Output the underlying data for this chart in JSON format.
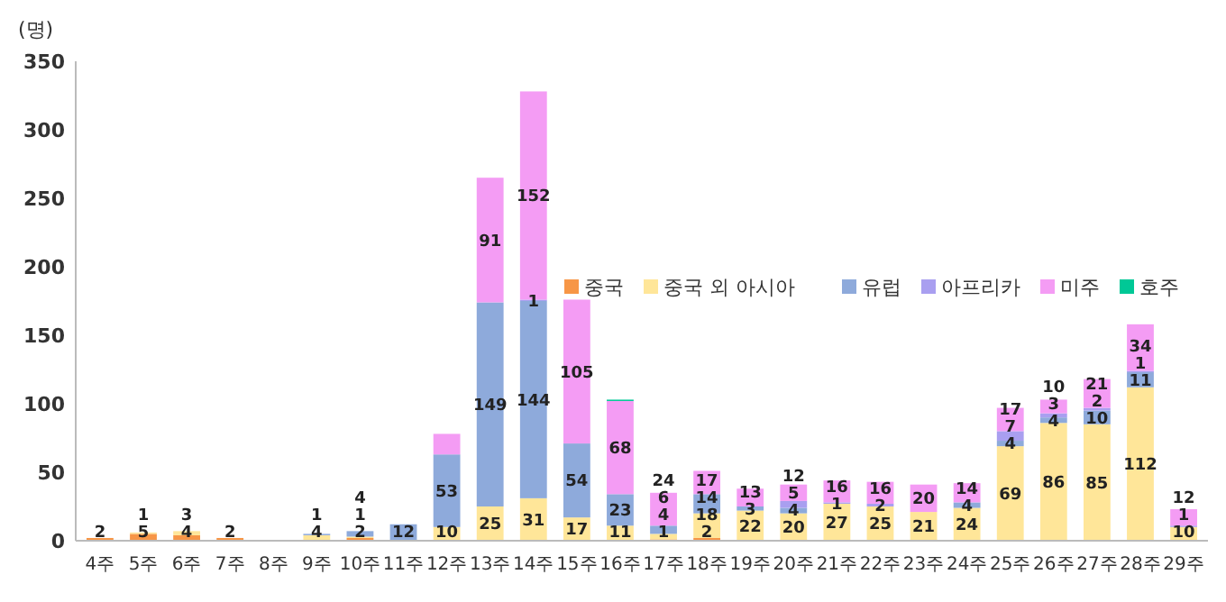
{
  "chart_data": {
    "type": "bar",
    "stacked": true,
    "ylabel": "(명)",
    "ylim": [
      0,
      350
    ],
    "yticks": [
      0,
      50,
      100,
      150,
      200,
      250,
      300,
      350
    ],
    "grid": false,
    "legend": "right",
    "categories": [
      "4주",
      "5주",
      "6주",
      "7주",
      "8주",
      "9주",
      "10주",
      "11주",
      "12주",
      "13주",
      "14주",
      "15주",
      "16주",
      "17주",
      "18주",
      "19주",
      "20주",
      "21주",
      "22주",
      "23주",
      "24주",
      "25주",
      "26주",
      "27주",
      "28주",
      "29주"
    ],
    "series": [
      {
        "name": "중국",
        "color": "#f79646",
        "values": [
          2,
          5,
          4,
          2,
          null,
          null,
          2,
          null,
          null,
          null,
          null,
          null,
          null,
          1,
          2,
          null,
          null,
          null,
          null,
          null,
          null,
          null,
          null,
          null,
          null,
          null
        ],
        "value_labels": [
          "2",
          "5",
          "4",
          "2",
          null,
          null,
          "2",
          null,
          null,
          null,
          null,
          null,
          null,
          "1",
          "2",
          null,
          null,
          null,
          null,
          null,
          null,
          null,
          null,
          null,
          null,
          null
        ]
      },
      {
        "name": "중국 외 아시아",
        "color": "#ffe699",
        "values": [
          null,
          1,
          3,
          null,
          null,
          4,
          1,
          null,
          10,
          25,
          31,
          17,
          11,
          4,
          18,
          22,
          20,
          27,
          25,
          21,
          24,
          69,
          86,
          85,
          112,
          10
        ],
        "value_labels": [
          null,
          "1",
          "3",
          null,
          null,
          "4",
          "1",
          null,
          "10",
          "25",
          "31",
          "17",
          "11",
          "4",
          "18",
          "22",
          "20",
          "27",
          "25",
          "21",
          "24",
          "69",
          "86",
          "85",
          "112",
          "10"
        ]
      },
      {
        "name": "유럽",
        "color": "#8eaadb",
        "values": [
          null,
          null,
          null,
          null,
          null,
          1,
          4,
          12,
          53,
          149,
          144,
          54,
          23,
          6,
          14,
          3,
          4,
          null,
          null,
          null,
          4,
          4,
          4,
          10,
          11,
          null
        ],
        "value_labels": [
          null,
          null,
          null,
          null,
          null,
          "1",
          "4",
          "12",
          "53",
          "149",
          "144",
          "54",
          "23",
          "6",
          "14",
          "3",
          "4",
          null,
          null,
          null,
          "4",
          "4",
          "4",
          "10",
          "11",
          null
        ]
      },
      {
        "name": "아프리카",
        "color": "#a99ff0",
        "values": [
          null,
          null,
          null,
          null,
          null,
          null,
          null,
          null,
          null,
          null,
          1,
          null,
          null,
          null,
          null,
          null,
          5,
          1,
          2,
          null,
          null,
          7,
          3,
          2,
          1,
          1
        ],
        "value_labels": [
          null,
          null,
          null,
          null,
          null,
          null,
          null,
          null,
          null,
          null,
          "1",
          null,
          null,
          null,
          null,
          null,
          "5",
          "1",
          "2",
          null,
          null,
          "7",
          "3",
          "2",
          "1",
          "1"
        ]
      },
      {
        "name": "미주",
        "color": "#f49cf4",
        "values": [
          null,
          null,
          null,
          null,
          null,
          null,
          null,
          null,
          15,
          91,
          152,
          105,
          68,
          24,
          17,
          13,
          12,
          16,
          16,
          20,
          14,
          17,
          10,
          21,
          34,
          12
        ],
        "value_labels": [
          null,
          null,
          null,
          null,
          null,
          null,
          null,
          null,
          null,
          "91",
          "152",
          "105",
          "68",
          "24",
          "17",
          "13",
          "12",
          "16",
          "16",
          "20",
          "14",
          "17",
          "10",
          "21",
          "34",
          "12"
        ]
      },
      {
        "name": "호주",
        "color": "#00c896",
        "values": [
          null,
          null,
          null,
          null,
          null,
          null,
          null,
          null,
          null,
          null,
          null,
          null,
          1,
          null,
          null,
          null,
          null,
          null,
          null,
          null,
          null,
          null,
          null,
          null,
          null,
          null
        ],
        "value_labels": [
          null,
          null,
          null,
          null,
          null,
          null,
          null,
          null,
          null,
          null,
          null,
          null,
          null,
          null,
          null,
          null,
          null,
          null,
          null,
          null,
          null,
          null,
          null,
          null,
          null,
          null
        ]
      }
    ]
  }
}
